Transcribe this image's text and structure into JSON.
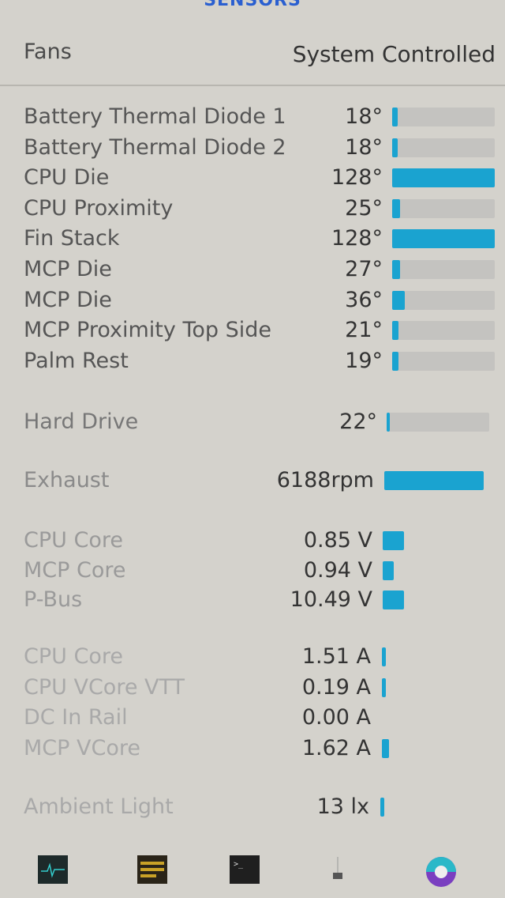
{
  "header": {
    "title": "SENSORS",
    "fans_label": "Fans",
    "fans_mode": "System Controlled"
  },
  "accent": "#1aa3d0",
  "temperatures": [
    {
      "label": "Battery Thermal Diode 1",
      "value": "18°",
      "fill": 5
    },
    {
      "label": "Battery Thermal Diode 2",
      "value": "18°",
      "fill": 5
    },
    {
      "label": "CPU Die",
      "value": "128°",
      "fill": 100
    },
    {
      "label": "CPU Proximity",
      "value": "25°",
      "fill": 8
    },
    {
      "label": "Fin Stack",
      "value": "128°",
      "fill": 100
    },
    {
      "label": "MCP Die",
      "value": "27°",
      "fill": 8
    },
    {
      "label": "MCP Die",
      "value": "36°",
      "fill": 12
    },
    {
      "label": "MCP Proximity Top Side",
      "value": "21°",
      "fill": 6
    },
    {
      "label": "Palm Rest",
      "value": "19°",
      "fill": 6
    }
  ],
  "drive": {
    "label": "Hard Drive",
    "value": "22°",
    "fill": 3
  },
  "fan": {
    "label": "Exhaust",
    "value": "6188rpm",
    "fill": 100
  },
  "voltages": [
    {
      "label": "CPU Core",
      "value": "0.85 V",
      "fill": 30
    },
    {
      "label": "MCP Core",
      "value": "0.94 V",
      "fill": 15
    },
    {
      "label": "P-Bus",
      "value": "10.49 V",
      "fill": 30
    }
  ],
  "currents": [
    {
      "label": "CPU Core",
      "value": "1.51 A",
      "fill": 5
    },
    {
      "label": "CPU VCore VTT",
      "value": "0.19 A",
      "fill": 5
    },
    {
      "label": "DC In Rail",
      "value": "0.00 A",
      "fill": 0
    },
    {
      "label": "MCP VCore",
      "value": "1.62 A",
      "fill": 10
    }
  ],
  "light": {
    "label": "Ambient Light",
    "value": "13 lx",
    "fill": 5
  },
  "dock": [
    "activity-monitor-icon",
    "console-icon",
    "terminal-icon",
    "utility-icon",
    "color-app-icon"
  ]
}
